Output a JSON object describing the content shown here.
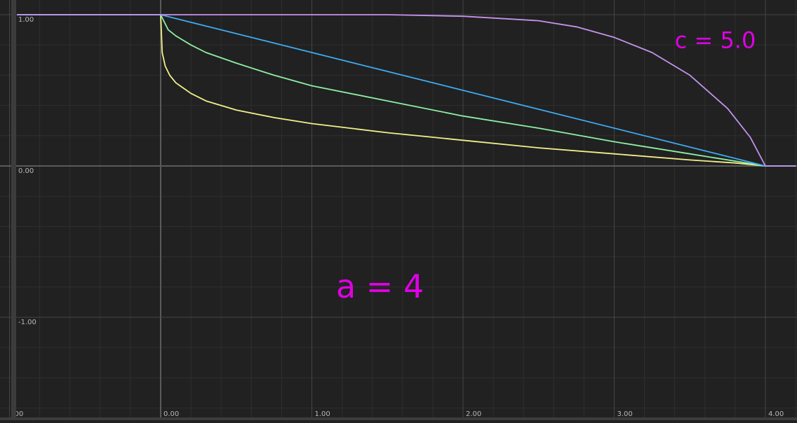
{
  "chart_data": {
    "type": "line",
    "xlim": [
      -0.95,
      4.2
    ],
    "ylim": [
      -1.65,
      1.1
    ],
    "grid": true,
    "x_ticks": [
      {
        "value": -1,
        "label": ".00"
      },
      {
        "value": 0,
        "label": "0.00"
      },
      {
        "value": 1,
        "label": "1.00"
      },
      {
        "value": 2,
        "label": "2.00"
      },
      {
        "value": 3,
        "label": "3.00"
      },
      {
        "value": 4,
        "label": "4.00"
      }
    ],
    "y_ticks": [
      {
        "value": 1,
        "label": "1.00"
      },
      {
        "value": 0,
        "label": "0.00"
      },
      {
        "value": -1,
        "label": "-1.00"
      }
    ],
    "series": [
      {
        "color": "#f3f08a",
        "x": [
          -0.95,
          0,
          0.01,
          0.03,
          0.06,
          0.1,
          0.2,
          0.3,
          0.5,
          0.75,
          1,
          1.5,
          2,
          2.5,
          3,
          3.5,
          3.8,
          4,
          4.2
        ],
        "y": [
          1,
          1,
          0.75,
          0.66,
          0.6,
          0.55,
          0.48,
          0.43,
          0.37,
          0.32,
          0.28,
          0.22,
          0.17,
          0.12,
          0.08,
          0.04,
          0.02,
          0,
          0
        ]
      },
      {
        "color": "#8ef0a4",
        "x": [
          -0.95,
          0,
          0.05,
          0.1,
          0.2,
          0.3,
          0.5,
          0.75,
          1,
          1.5,
          2,
          2.5,
          3,
          3.5,
          4,
          4.2
        ],
        "y": [
          1,
          1,
          0.9,
          0.86,
          0.8,
          0.75,
          0.68,
          0.6,
          0.53,
          0.43,
          0.33,
          0.25,
          0.16,
          0.08,
          0,
          0
        ]
      },
      {
        "color": "#3daaf0",
        "x": [
          -0.95,
          0,
          4,
          4.2
        ],
        "y": [
          1,
          1,
          0,
          0
        ]
      },
      {
        "color": "#c592ee",
        "x": [
          -0.95,
          0,
          1,
          1.5,
          2,
          2.5,
          2.75,
          3,
          3.25,
          3.5,
          3.75,
          3.9,
          4,
          4.2
        ],
        "y": [
          1,
          1,
          1,
          1,
          0.99,
          0.96,
          0.92,
          0.85,
          0.75,
          0.6,
          0.38,
          0.19,
          0,
          0
        ]
      }
    ],
    "annotations": [
      {
        "text": "c = 5.0",
        "x": 3.4,
        "y": 0.78,
        "size": 32
      },
      {
        "text": "a = 4",
        "x": 1.16,
        "y": -0.87,
        "size": 46
      }
    ]
  }
}
